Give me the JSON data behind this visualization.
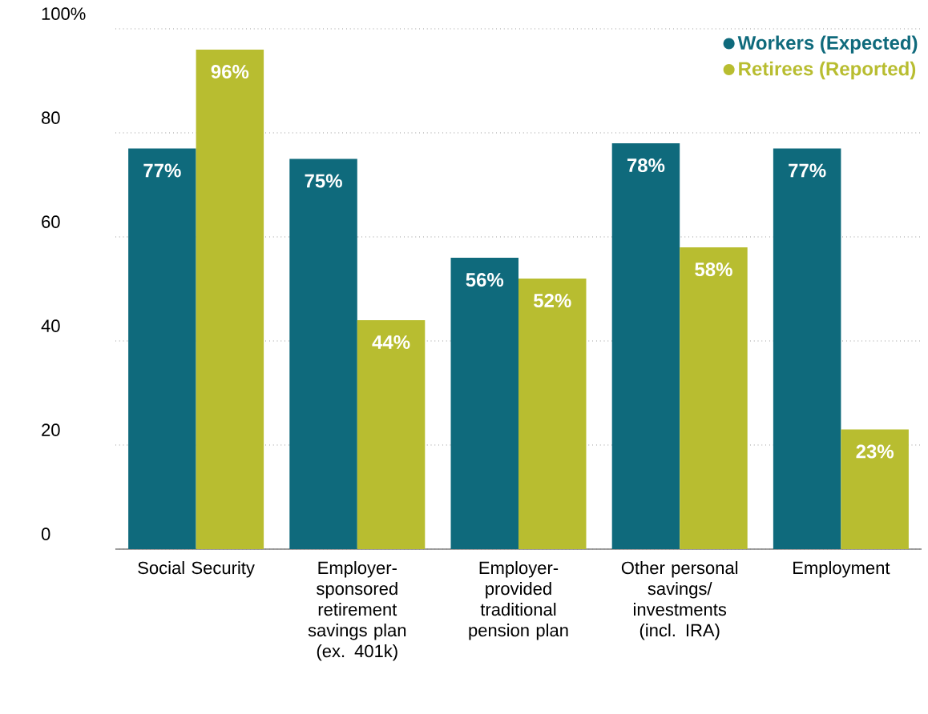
{
  "chart_data": {
    "type": "bar",
    "categories": [
      "Social Security",
      "Employer-sponsored retirement savings plan (ex. 401k)",
      "Employer-provided traditional pension plan",
      "Other personal savings/ investments (incl. IRA)",
      "Employment"
    ],
    "series": [
      {
        "name": "Workers (Expected)",
        "color": "#0f6a7c",
        "values": [
          77,
          75,
          56,
          78,
          77
        ],
        "value_labels": [
          "77%",
          "75%",
          "56%",
          "78%",
          "77%"
        ]
      },
      {
        "name": "Retirees (Reported)",
        "color": "#b8bd30",
        "values": [
          96,
          44,
          52,
          58,
          23
        ],
        "value_labels": [
          "96%",
          "44%",
          "52%",
          "58%",
          "23%"
        ]
      }
    ],
    "ylim": [
      0,
      100
    ],
    "yticks": [
      0,
      20,
      40,
      60,
      80,
      {
        "value": 100,
        "label": "100%"
      }
    ],
    "grid": "y",
    "line_style": "dotted",
    "legend": "top right",
    "marker": "circle"
  }
}
